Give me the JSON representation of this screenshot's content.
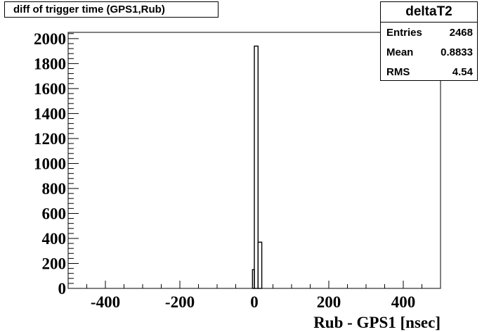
{
  "chart_data": {
    "type": "bar",
    "title": "diff of trigger time (GPS1,Rub)",
    "xlabel": "Rub - GPS1 [nsec]",
    "ylabel": "",
    "xlim": [
      -500,
      500
    ],
    "ylim": [
      0,
      2050
    ],
    "x_ticks": [
      -400,
      -200,
      0,
      200,
      400
    ],
    "y_ticks": [
      0,
      200,
      400,
      600,
      800,
      1000,
      1200,
      1400,
      1600,
      1800,
      2000
    ],
    "bins": [
      {
        "x0": -5,
        "x1": 0,
        "value": 150
      },
      {
        "x0": 0,
        "x1": 10,
        "value": 1940
      },
      {
        "x0": 10,
        "x1": 20,
        "value": 370
      }
    ],
    "grid": false,
    "legend": "none"
  },
  "stats": {
    "name": "deltaT2",
    "rows": [
      {
        "label": "Entries",
        "value": "2468"
      },
      {
        "label": "Mean",
        "value": "0.8833"
      },
      {
        "label": "RMS",
        "value": "4.54"
      }
    ]
  },
  "colors": {
    "line": "#000000",
    "background": "#ffffff"
  }
}
